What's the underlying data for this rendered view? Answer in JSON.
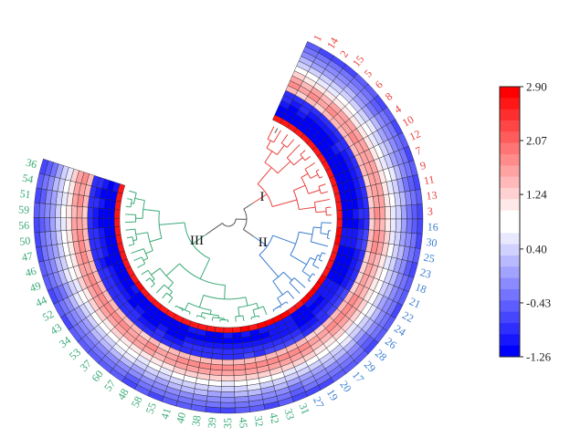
{
  "chart_data": {
    "type": "heatmap",
    "layout": "circular",
    "leaf_order": [
      "1",
      "14",
      "2",
      "15",
      "5",
      "6",
      "8",
      "4",
      "10",
      "12",
      "7",
      "9",
      "11",
      "13",
      "3",
      "16",
      "30",
      "25",
      "23",
      "18",
      "21",
      "22",
      "24",
      "26",
      "28",
      "29",
      "17",
      "20",
      "19",
      "27",
      "31",
      "33",
      "42",
      "32",
      "45",
      "35",
      "39",
      "38",
      "40",
      "41",
      "55",
      "58",
      "48",
      "57",
      "60",
      "37",
      "53",
      "34",
      "43",
      "52",
      "44",
      "49",
      "46",
      "47",
      "50",
      "56",
      "59",
      "51",
      "54",
      "36"
    ],
    "clusters": [
      {
        "name": "I",
        "color": "#e8433f",
        "leaves": [
          "1",
          "14",
          "2",
          "15",
          "5",
          "6",
          "8",
          "4",
          "10",
          "12",
          "7",
          "9",
          "11",
          "13",
          "3"
        ]
      },
      {
        "name": "II",
        "color": "#3a7dd0",
        "leaves": [
          "16",
          "30",
          "25",
          "23",
          "18",
          "21",
          "22",
          "24",
          "26",
          "28",
          "29",
          "17",
          "20",
          "19",
          "27"
        ]
      },
      {
        "name": "III",
        "color": "#3aaa77",
        "leaves": [
          "31",
          "33",
          "42",
          "32",
          "45",
          "35",
          "39",
          "38",
          "40",
          "41",
          "55",
          "58",
          "48",
          "57",
          "60",
          "37",
          "53",
          "34",
          "43",
          "52",
          "44",
          "49",
          "46",
          "47",
          "50",
          "56",
          "59",
          "51",
          "54",
          "36"
        ]
      }
    ],
    "ring_profile": [
      2.75,
      -1.2,
      -1.24,
      -1.14,
      -0.95,
      -0.85,
      1.35,
      1.7,
      1.55,
      1.1,
      0.75,
      0.45,
      0.15,
      -0.15,
      -0.35,
      -0.6
    ],
    "colorbar": {
      "min": -1.26,
      "max": 2.9,
      "ticks": [
        "2.90",
        "2.07",
        "1.24",
        "0.40",
        "-0.43",
        "-1.26"
      ],
      "low_color": "#0000ff",
      "mid_color": "#ffffff",
      "high_color": "#ff0000"
    }
  }
}
